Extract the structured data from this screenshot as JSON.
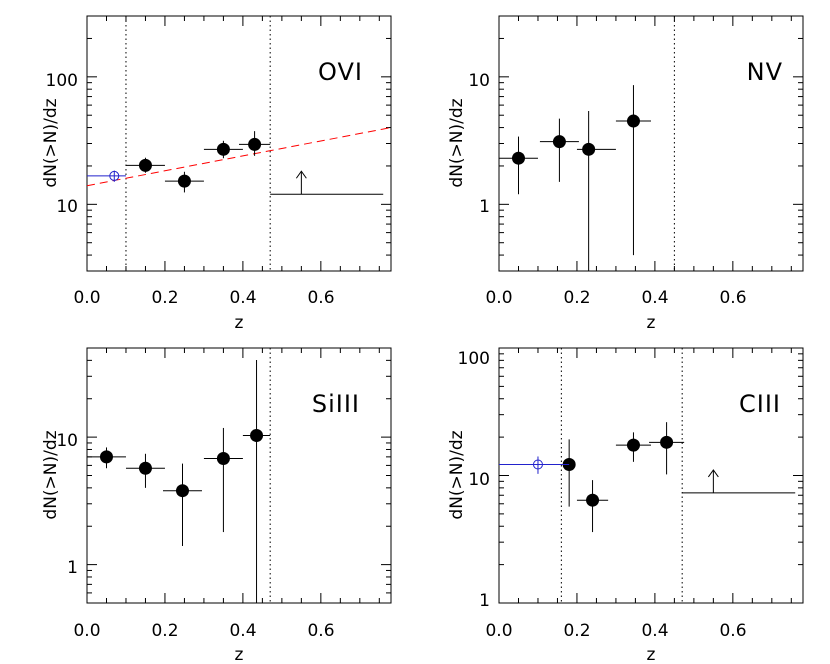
{
  "chart_data": [
    {
      "type": "scatter",
      "panel": "OVI",
      "title": "OVI",
      "xlabel": "z",
      "ylabel": "dN(>N)/dz",
      "xlim": [
        0.0,
        0.78
      ],
      "ylim": [
        3.0,
        300.0
      ],
      "yscale": "log",
      "x_ticks": [
        "0.0",
        "0.2",
        "0.4",
        "0.6"
      ],
      "y_ticks": [
        {
          "value": 10,
          "label": "10"
        },
        {
          "value": 100,
          "label": "100"
        }
      ],
      "vlines": [
        0.1,
        0.47
      ],
      "series": [
        {
          "marker": "filled-circle",
          "color": "#000000",
          "points": [
            {
              "x": 0.15,
              "y": 20.2,
              "xerr": [
                0.05,
                0.05
              ],
              "yerr": [
                2.5,
                3.0
              ]
            },
            {
              "x": 0.25,
              "y": 15.2,
              "xerr": [
                0.05,
                0.05
              ],
              "yerr": [
                2.8,
                2.8
              ]
            },
            {
              "x": 0.35,
              "y": 27.0,
              "xerr": [
                0.05,
                0.05
              ],
              "yerr": [
                4.0,
                4.5
              ]
            },
            {
              "x": 0.43,
              "y": 29.5,
              "xerr": [
                0.04,
                0.04
              ],
              "yerr": [
                5.5,
                8.0
              ]
            }
          ]
        },
        {
          "marker": "open-circle",
          "color": "#2222cc",
          "points": [
            {
              "x": 0.07,
              "y": 16.7,
              "xerr": [
                0.07,
                0.03
              ],
              "yerr": [
                1.7,
                1.7
              ]
            }
          ]
        }
      ],
      "lower_limits": [
        {
          "x": 0.55,
          "y": 12.0,
          "xrange": [
            0.47,
            0.76
          ]
        }
      ],
      "fit_line": {
        "color": "#ff0000",
        "style": "dashed",
        "x": [
          0.0,
          0.78
        ],
        "y": [
          14.0,
          40.0
        ]
      }
    },
    {
      "type": "scatter",
      "panel": "NV",
      "title": "NV",
      "xlabel": "z",
      "ylabel": "dN(>N)/dz",
      "xlim": [
        0.0,
        0.78
      ],
      "ylim": [
        0.3,
        30.0
      ],
      "yscale": "log",
      "x_ticks": [
        "0.0",
        "0.2",
        "0.4",
        "0.6"
      ],
      "y_ticks": [
        {
          "value": 1,
          "label": "1"
        },
        {
          "value": 10,
          "label": "10"
        }
      ],
      "vlines": [
        0.45
      ],
      "series": [
        {
          "marker": "filled-circle",
          "color": "#000000",
          "points": [
            {
              "x": 0.05,
              "y": 2.3,
              "xerr": [
                0.05,
                0.05
              ],
              "yerr": [
                1.1,
                1.1
              ]
            },
            {
              "x": 0.155,
              "y": 3.1,
              "xerr": [
                0.05,
                0.05
              ],
              "yerr": [
                1.6,
                1.6
              ]
            },
            {
              "x": 0.23,
              "y": 2.7,
              "xerr": [
                0.03,
                0.07
              ],
              "yerr": [
                2.4,
                2.7
              ]
            },
            {
              "x": 0.345,
              "y": 4.5,
              "xerr": [
                0.045,
                0.045
              ],
              "yerr": [
                4.1,
                4.1
              ]
            }
          ]
        }
      ]
    },
    {
      "type": "scatter",
      "panel": "SiIII",
      "title": "SiIII",
      "xlabel": "z",
      "ylabel": "dN(>N)/dz",
      "xlim": [
        0.0,
        0.78
      ],
      "ylim": [
        0.5,
        50.0
      ],
      "yscale": "log",
      "x_ticks": [
        "0.0",
        "0.2",
        "0.4",
        "0.6"
      ],
      "y_ticks": [
        {
          "value": 1,
          "label": "1"
        },
        {
          "value": 10,
          "label": "10"
        }
      ],
      "vlines": [
        0.47
      ],
      "series": [
        {
          "marker": "filled-circle",
          "color": "#000000",
          "points": [
            {
              "x": 0.05,
              "y": 7.0,
              "xerr": [
                0.05,
                0.05
              ],
              "yerr": [
                1.3,
                1.3
              ]
            },
            {
              "x": 0.15,
              "y": 5.7,
              "xerr": [
                0.05,
                0.05
              ],
              "yerr": [
                1.7,
                1.7
              ]
            },
            {
              "x": 0.245,
              "y": 3.8,
              "xerr": [
                0.05,
                0.05
              ],
              "yerr": [
                2.4,
                2.4
              ]
            },
            {
              "x": 0.35,
              "y": 6.8,
              "xerr": [
                0.05,
                0.05
              ],
              "yerr": [
                5.0,
                5.0
              ]
            },
            {
              "x": 0.435,
              "y": 10.3,
              "xerr": [
                0.035,
                0.035
              ],
              "yerr": [
                9.8,
                30.0
              ]
            }
          ]
        }
      ]
    },
    {
      "type": "scatter",
      "panel": "CIII",
      "title": "CIII",
      "xlabel": "z",
      "ylabel": "dN(>N)/dz",
      "xlim": [
        0.0,
        0.78
      ],
      "ylim": [
        1.0,
        100.0
      ],
      "yscale": "log",
      "x_ticks": [
        "0.0",
        "0.2",
        "0.4",
        "0.6"
      ],
      "y_ticks": [
        {
          "value": 1,
          "label": "1"
        },
        {
          "value": 10,
          "label": "10"
        },
        {
          "value": 100,
          "label": "100"
        }
      ],
      "vlines": [
        0.16,
        0.47
      ],
      "series": [
        {
          "marker": "filled-circle",
          "color": "#000000",
          "points": [
            {
              "x": 0.18,
              "y": 12.2,
              "xerr": [
                0.02,
                0.0
              ],
              "yerr": [
                6.5,
                7.0
              ]
            },
            {
              "x": 0.24,
              "y": 6.4,
              "xerr": [
                0.04,
                0.04
              ],
              "yerr": [
                2.8,
                2.8
              ]
            },
            {
              "x": 0.345,
              "y": 17.3,
              "xerr": [
                0.045,
                0.045
              ],
              "yerr": [
                4.5,
                4.5
              ]
            },
            {
              "x": 0.43,
              "y": 18.2,
              "xerr": [
                0.045,
                0.045
              ],
              "yerr": [
                8.0,
                8.0
              ]
            }
          ]
        },
        {
          "marker": "open-circle",
          "color": "#2222cc",
          "points": [
            {
              "x": 0.1,
              "y": 12.2,
              "xerr": [
                0.1,
                0.08
              ],
              "yerr": [
                1.9,
                1.9
              ]
            }
          ]
        }
      ],
      "lower_limits": [
        {
          "x": 0.55,
          "y": 7.3,
          "xrange": [
            0.47,
            0.76
          ]
        }
      ]
    }
  ]
}
